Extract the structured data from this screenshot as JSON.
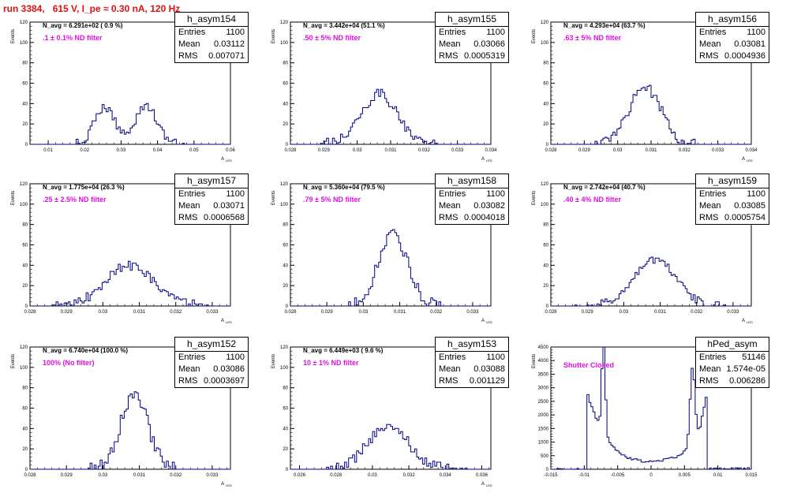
{
  "page": {
    "title": "run 3384,   615 V, I_pe ≈ 0.30 nA, 120 Hz"
  },
  "colors": {
    "histogram": "#000080",
    "title": "#e01010",
    "annotation": "#e010e0"
  },
  "chart_data": [
    {
      "type": "bar",
      "title": "h_asym154",
      "ylabel": "Events",
      "xlabel": "A_LED",
      "stats": {
        "entries": "1100",
        "mean": "0.03112",
        "rms": "0.007071"
      },
      "navg": "N_avg = 6.291e+02 ( 0.9 %)",
      "filter": ".1 ± 0.1% ND filter",
      "xlim": [
        0.005,
        0.06
      ],
      "ylim": [
        0,
        120
      ],
      "xticks": [
        "0.01",
        "0.02",
        "0.03",
        "0.04",
        "0.05",
        "0.06"
      ],
      "yticks": [
        "0",
        "20",
        "40",
        "60",
        "80",
        "100",
        "120"
      ],
      "peaks": [
        {
          "c": 0.0255,
          "s": 0.0028,
          "a": 36
        },
        {
          "c": 0.0368,
          "s": 0.003,
          "a": 38
        }
      ],
      "noise": 4
    },
    {
      "type": "bar",
      "title": "h_asym155",
      "ylabel": "Events",
      "xlabel": "A_LED",
      "stats": {
        "entries": "1100",
        "mean": "0.03066",
        "rms": "0.0005319"
      },
      "navg": "N_avg = 3.442e+04 (51.1 %)",
      "filter": ".50 ± 5% ND filter",
      "xlim": [
        0.028,
        0.034
      ],
      "ylim": [
        0,
        120
      ],
      "xticks": [
        "0.028",
        "0.029",
        "0.03",
        "0.031",
        "0.032",
        "0.033",
        "0.034"
      ],
      "yticks": [
        "0",
        "20",
        "40",
        "60",
        "80",
        "100",
        "120"
      ],
      "peaks": [
        {
          "c": 0.03066,
          "s": 0.00053,
          "a": 50
        }
      ],
      "noise": 5
    },
    {
      "type": "bar",
      "title": "h_asym156",
      "ylabel": "Events",
      "xlabel": "A_LED",
      "stats": {
        "entries": "1100",
        "mean": "0.03081",
        "rms": "0.0004936"
      },
      "navg": "N_avg = 4.293e+04 (63.7 %)",
      "filter": ".63 ± 5% ND filter",
      "xlim": [
        0.028,
        0.034
      ],
      "ylim": [
        0,
        120
      ],
      "xticks": [
        "0.028",
        "0.029",
        "0.03",
        "0.031",
        "0.032",
        "0.033",
        "0.034"
      ],
      "yticks": [
        "0",
        "20",
        "40",
        "60",
        "80",
        "100",
        "120"
      ],
      "peaks": [
        {
          "c": 0.03081,
          "s": 0.00049,
          "a": 55
        }
      ],
      "noise": 6
    },
    {
      "type": "bar",
      "title": "h_asym157",
      "ylabel": "Events",
      "xlabel": "A_LED",
      "stats": {
        "entries": "1100",
        "mean": "0.03071",
        "rms": "0.0006568"
      },
      "navg": "N_avg = 1.775e+04 (26.3 %)",
      "filter": ".25 ± 2.5% ND filter",
      "xlim": [
        0.028,
        0.0335
      ],
      "ylim": [
        0,
        120
      ],
      "xticks": [
        "0.028",
        "0.029",
        "0.03",
        "0.031",
        "0.032",
        "0.033"
      ],
      "yticks": [
        "0",
        "20",
        "40",
        "60",
        "80",
        "100",
        "120"
      ],
      "peaks": [
        {
          "c": 0.03071,
          "s": 0.00066,
          "a": 40
        }
      ],
      "noise": 5
    },
    {
      "type": "bar",
      "title": "h_asym158",
      "ylabel": "Events",
      "xlabel": "A_LED",
      "stats": {
        "entries": "1100",
        "mean": "0.03082",
        "rms": "0.0004018"
      },
      "navg": "N_avg = 5.360e+04 (79.5 %)",
      "filter": ".79 ± 5% ND filter",
      "xlim": [
        0.028,
        0.0335
      ],
      "ylim": [
        0,
        120
      ],
      "xticks": [
        "0.028",
        "0.029",
        "0.03",
        "0.031",
        "0.032",
        "0.033"
      ],
      "yticks": [
        "0",
        "20",
        "40",
        "60",
        "80",
        "100",
        "120"
      ],
      "peaks": [
        {
          "c": 0.03082,
          "s": 0.0004,
          "a": 70
        }
      ],
      "noise": 6
    },
    {
      "type": "bar",
      "title": "h_asym159",
      "ylabel": "Events",
      "xlabel": "A_LED",
      "stats": {
        "entries": "1100",
        "mean": "0.03085",
        "rms": "0.0005754"
      },
      "navg": "N_avg = 2.742e+04 (40.7 %)",
      "filter": ".40 ± 4% ND filter",
      "xlim": [
        0.028,
        0.0335
      ],
      "ylim": [
        0,
        120
      ],
      "xticks": [
        "0.028",
        "0.029",
        "0.03",
        "0.031",
        "0.032",
        "0.033"
      ],
      "yticks": [
        "0",
        "20",
        "40",
        "60",
        "80",
        "100",
        "120"
      ],
      "peaks": [
        {
          "c": 0.03085,
          "s": 0.00058,
          "a": 46
        }
      ],
      "noise": 4
    },
    {
      "type": "bar",
      "title": "h_asym152",
      "ylabel": "Events",
      "xlabel": "A_LED",
      "stats": {
        "entries": "1100",
        "mean": "0.03086",
        "rms": "0.0003697"
      },
      "navg": "N_avg = 6.740e+04 (100.0 %)",
      "filter": "100% (No filter)",
      "xlim": [
        0.028,
        0.0335
      ],
      "ylim": [
        0,
        120
      ],
      "xticks": [
        "0.028",
        "0.029",
        "0.03",
        "0.031",
        "0.032",
        "0.033"
      ],
      "yticks": [
        "0",
        "20",
        "40",
        "60",
        "80",
        "100",
        "120"
      ],
      "peaks": [
        {
          "c": 0.03086,
          "s": 0.00037,
          "a": 74
        }
      ],
      "noise": 7
    },
    {
      "type": "bar",
      "title": "h_asym153",
      "ylabel": "Events",
      "xlabel": "A_LED",
      "stats": {
        "entries": "1100",
        "mean": "0.03088",
        "rms": "0.001129"
      },
      "navg": "N_avg = 6.449e+03 ( 9.6 %)",
      "filter": "10 ± 1% ND filter",
      "xlim": [
        0.0255,
        0.0365
      ],
      "ylim": [
        0,
        120
      ],
      "xticks": [
        "0.026",
        "0.028",
        "0.03",
        "0.032",
        "0.034",
        "0.036"
      ],
      "yticks": [
        "0",
        "20",
        "40",
        "60",
        "80",
        "100",
        "120"
      ],
      "peaks": [
        {
          "c": 0.03088,
          "s": 0.00113,
          "a": 42
        }
      ],
      "noise": 5
    },
    {
      "type": "bar",
      "title": "hPed_asym",
      "ylabel": "Events",
      "xlabel": "",
      "stats": {
        "entries": "51146",
        "mean": "1.574e-05",
        "rms": "0.006286"
      },
      "navg": "",
      "filter": "Shutter Closed",
      "xlim": [
        -0.015,
        0.015
      ],
      "ylim": [
        0,
        4500
      ],
      "xticks": [
        "-0.015",
        "-0.01",
        "-0.005",
        "0",
        "0.005",
        "0.01",
        "0.015"
      ],
      "yticks": [
        "0",
        "500",
        "1000",
        "1500",
        "2000",
        "2500",
        "3000",
        "3500",
        "4000",
        "4500"
      ],
      "shape": "pedestal"
    }
  ]
}
